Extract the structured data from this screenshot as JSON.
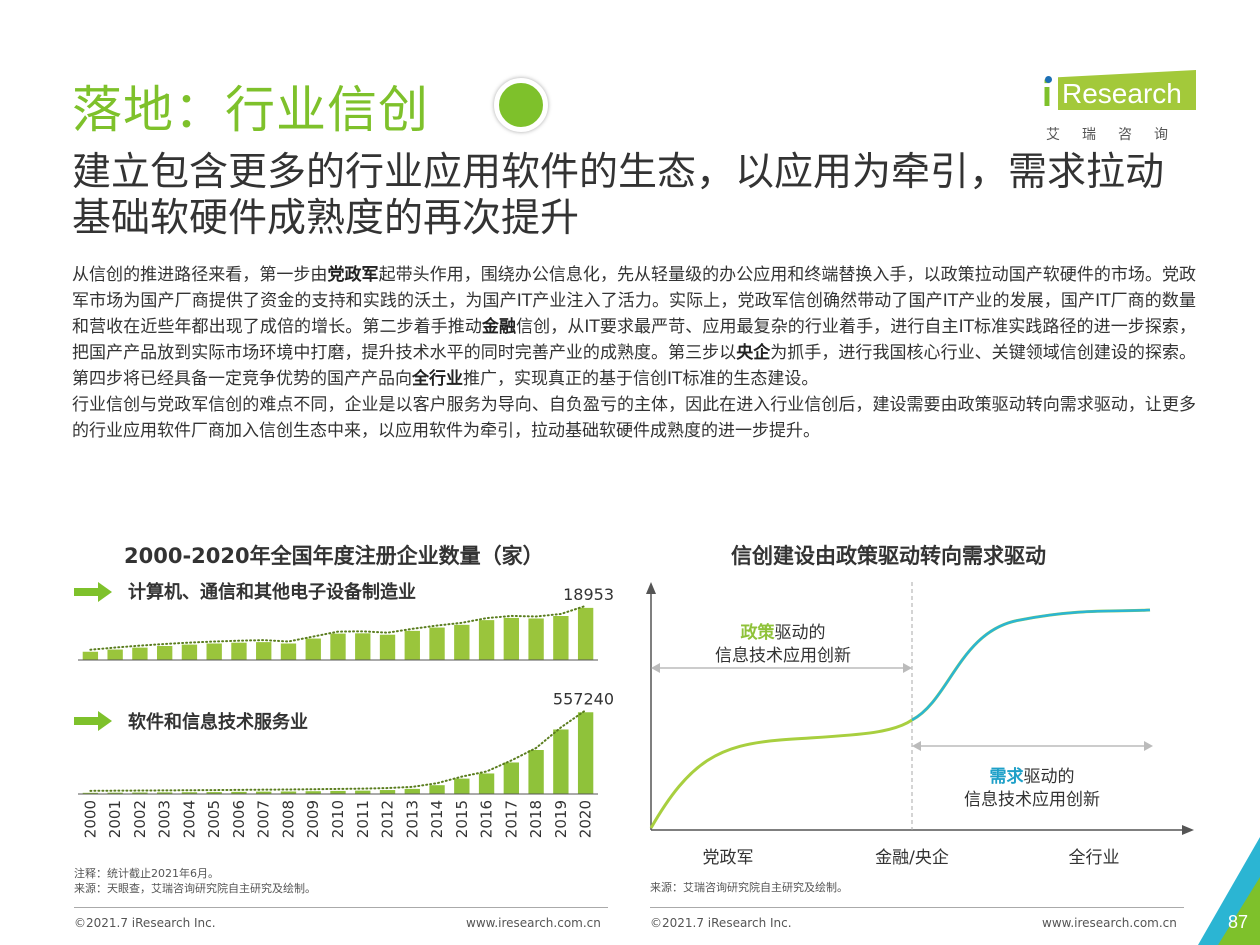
{
  "header": {
    "title": "落地：行业信创",
    "subtitle": "建立包含更多的行业应用软件的生态，以应用为牵引，需求拉动基础软硬件成熟度的再次提升",
    "logo_text": "Research",
    "logo_i": "i",
    "logo_sub": "艾瑞咨询"
  },
  "body": {
    "p1_parts": [
      "从信创的推进路径来看，第一步由",
      "党政军",
      "起带头作用，围绕办公信息化，先从轻量级的办公应用和终端替换入手，以政策拉动国产软硬件的市场。党政军市场为国产厂商提供了资金的支持和实践的沃土，为国产IT产业注入了活力。实际上，党政军信创确然带动了国产IT产业的发展，国产IT厂商的数量和营收在近些年都出现了成倍的增长。第二步着手推动",
      "金融",
      "信创，从IT要求最严苛、应用最复杂的行业着手，进行自主IT标准实践路径的进一步探索，把国产产品放到实际市场环境中打磨，提升技术水平的同时完善产业的成熟度。第三步以",
      "央企",
      "为抓手，进行我国核心行业、关键领域信创建设的探索。第四步将已经具备一定竞争优势的国产产品向",
      "全行业",
      "推广，实现真正的基于信创IT标准的生态建设。"
    ],
    "p2": "行业信创与党政军信创的难点不同，企业是以客户服务为导向、自负盈亏的主体，因此在进入行业信创后，建设需要由政策驱动转向需求驱动，让更多的行业应用软件厂商加入信创生态中来，以应用软件为牵引，拉动基础软硬件成熟度的进一步提升。"
  },
  "chart_data": [
    {
      "type": "bar",
      "title": "2000-2020年全国年度注册企业数量（家）",
      "categories": [
        "2000",
        "2001",
        "2002",
        "2003",
        "2004",
        "2005",
        "2006",
        "2007",
        "2008",
        "2009",
        "2010",
        "2011",
        "2012",
        "2013",
        "2014",
        "2015",
        "2016",
        "2017",
        "2018",
        "2019",
        "2020"
      ],
      "series": [
        {
          "name": "计算机、通信和其他电子设备制造业",
          "values": [
            3000,
            3800,
            4500,
            5100,
            5600,
            6000,
            6300,
            6500,
            6000,
            7800,
            9600,
            9700,
            9200,
            10600,
            11800,
            12800,
            14500,
            15300,
            15100,
            16000,
            18953
          ],
          "ylim": [
            0,
            20000
          ],
          "labels": {
            "last": "18953"
          },
          "color": "#9ac53c",
          "trend_color": "#5a7d1e"
        },
        {
          "name": "软件和信息技术服务业",
          "values": [
            8000,
            9000,
            10000,
            11000,
            12000,
            13000,
            14500,
            16000,
            17000,
            19000,
            21000,
            23000,
            27000,
            35000,
            60000,
            105000,
            140000,
            215000,
            300000,
            440000,
            557240
          ],
          "ylim": [
            0,
            600000
          ],
          "labels": {
            "last": "557240"
          },
          "color": "#8fc23a",
          "trend_color": "#5a7d1e"
        }
      ],
      "note": "注释：统计截止2021年6月。",
      "source": "来源：天眼查，艾瑞咨询研究院自主研究及绘制。"
    },
    {
      "type": "line",
      "title": "信创建设由政策驱动转向需求驱动",
      "x_categories": [
        "党政军",
        "金融/央企",
        "全行业"
      ],
      "annotations": [
        {
          "highlight": "政策",
          "rest": "驱动的",
          "line2": "信息技术应用创新"
        },
        {
          "highlight": "需求",
          "rest": "驱动的",
          "line2": "信息技术应用创新"
        }
      ],
      "colors": {
        "phase1": "#a8cf3f",
        "phase2": "#2bb5d3",
        "highlight1": "#8fc23a",
        "highlight2": "#1ea0c8"
      },
      "source": "来源：艾瑞咨询研究院自主研究及绘制。"
    }
  ],
  "footer": {
    "copyright_left": "©2021.7 iResearch Inc.",
    "url_left": "www.iresearch.com.cn",
    "copyright_right": "©2021.7 iResearch Inc.",
    "url_right": "www.iresearch.com.cn",
    "page_number": "87"
  }
}
